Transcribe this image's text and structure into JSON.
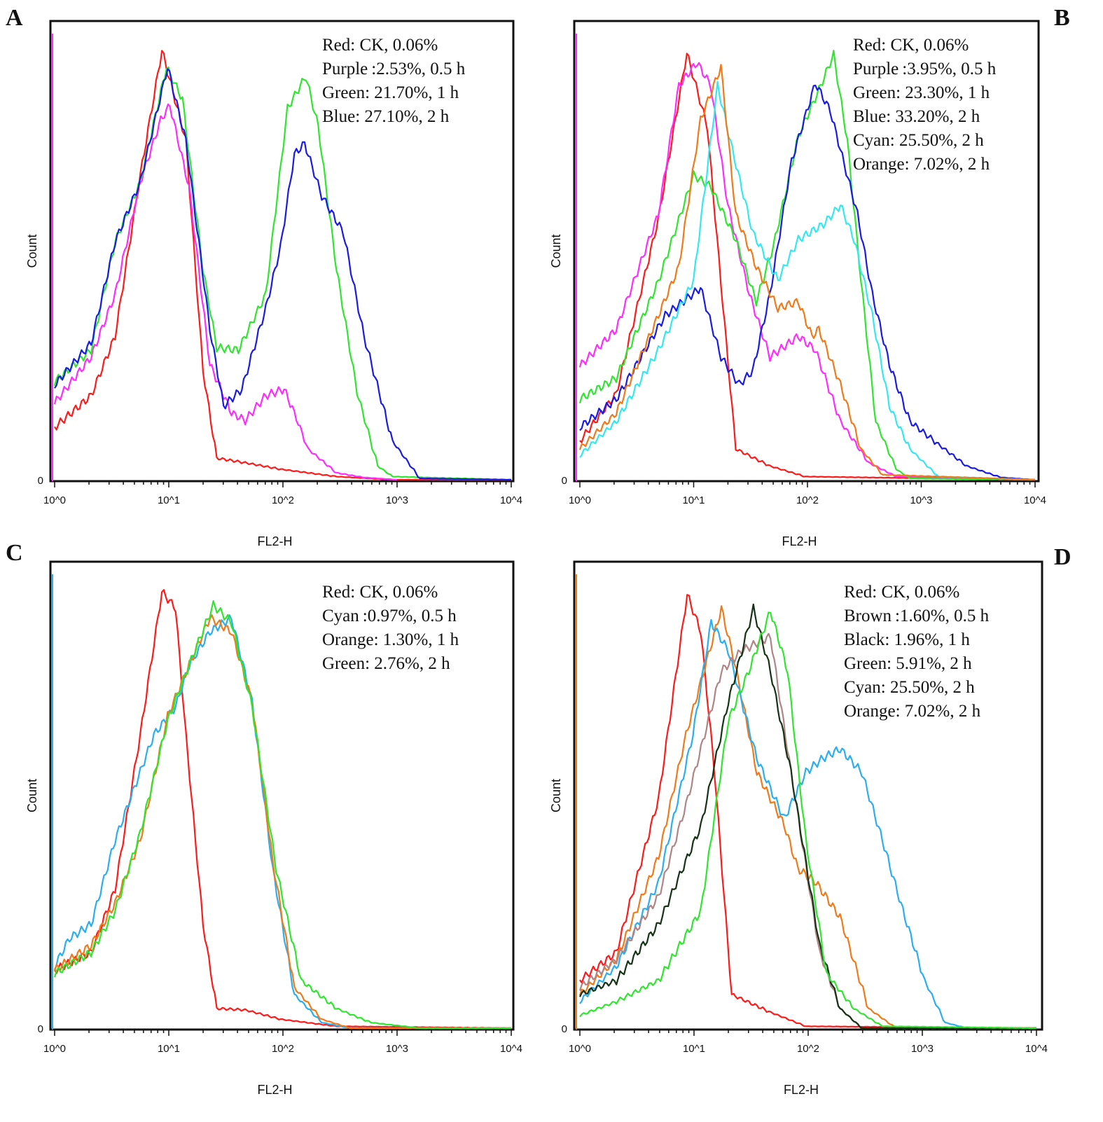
{
  "colors": {
    "red": "#ff1a1a",
    "purple": "#ff2bff",
    "green": "#2fe62f",
    "blue": "#1a1ae6",
    "cyan": "#33e8f0",
    "skyblue": "#2aaef0",
    "orange": "#f07a1a",
    "black": "#143214",
    "brown": "#b08484"
  },
  "chart_data": [
    {
      "type": "line",
      "panel": "A",
      "xlabel": "FL2-H",
      "ylabel": "Count",
      "xscale": "log",
      "xlim": [
        1,
        10000
      ],
      "ylim": [
        0,
        100
      ],
      "ytick_labels": [
        "0"
      ],
      "xtick_labels": [
        "10^0",
        "10^1",
        "10^2",
        "10^3",
        "10^4"
      ],
      "legend": [
        "Red: CK, 0.06%",
        "Purple :2.53%, 0.5 h",
        "Green: 21.70%, 1 h",
        "Blue: 27.10%, 2 h"
      ],
      "legend_placement": "top-right",
      "series": [
        {
          "name": "Red",
          "color": "red",
          "log_x": [
            0,
            0.32,
            0.53,
            0.75,
            0.94,
            1.15,
            1.3,
            1.42,
            1.67,
            1.98,
            2.47,
            2.96,
            4
          ],
          "y": [
            11.7,
            18.6,
            31.5,
            66.5,
            93.6,
            74,
            24,
            5,
            4,
            2.6,
            1,
            0.3,
            0.3
          ]
        },
        {
          "name": "Purple",
          "color": "purple",
          "log_x": [
            0,
            0.32,
            0.53,
            0.75,
            0.93,
            1.01,
            1.18,
            1.36,
            1.55,
            1.67,
            1.85,
            2.01,
            2.1,
            2.22,
            2.47,
            2.71,
            3
          ],
          "y": [
            17,
            27,
            40.6,
            65,
            78.5,
            81.7,
            63.5,
            25.4,
            14.8,
            13.2,
            18.6,
            20,
            14.8,
            7,
            1.8,
            0.8,
            0.3
          ]
        },
        {
          "name": "Green",
          "color": "green",
          "log_x": [
            0,
            0.32,
            0.53,
            0.75,
            0.98,
            1.12,
            1.3,
            1.42,
            1.61,
            1.85,
            2.04,
            2.2,
            2.31,
            2.47,
            2.65,
            2.83,
            2.96,
            4
          ],
          "y": [
            21.6,
            28.5,
            52,
            65,
            90,
            83,
            46,
            29,
            28.5,
            40.6,
            81,
            88,
            77,
            46,
            19.3,
            3.3,
            1,
            0.3
          ]
        },
        {
          "name": "Blue",
          "color": "blue",
          "log_x": [
            0,
            0.32,
            0.53,
            0.75,
            0.99,
            1.15,
            1.36,
            1.48,
            1.64,
            1.85,
            1.98,
            2.1,
            2.19,
            2.34,
            2.53,
            2.71,
            2.96,
            3.2,
            4
          ],
          "y": [
            20.9,
            30,
            52,
            65,
            90,
            74,
            33,
            16.3,
            20,
            37.6,
            51,
            71,
            73.4,
            62,
            54,
            31.5,
            8.7,
            0.6,
            0.3
          ]
        }
      ]
    },
    {
      "type": "line",
      "panel": "B",
      "xlabel": "FL2-H",
      "ylabel": "Count",
      "xscale": "log",
      "xlim": [
        1,
        10000
      ],
      "ylim": [
        0,
        100
      ],
      "ytick_labels": [
        "0"
      ],
      "xtick_labels": [
        "10^0",
        "10^1",
        "10^2",
        "10^3",
        "10^4"
      ],
      "legend": [
        "Red: CK, 0.06%",
        "Purple :3.95%, 0.5 h",
        "Green: 23.30%, 1 h",
        "Blue: 33.20%, 2 h",
        "Cyan: 25.50%, 2 h",
        "Orange: 7.02%, 2 h"
      ],
      "legend_placement": "top-right",
      "series": [
        {
          "name": "Red",
          "color": "red",
          "log_x": [
            0,
            0.32,
            0.69,
            0.94,
            1.12,
            1.24,
            1.37,
            1.67,
            1.98,
            4
          ],
          "y": [
            8.7,
            19,
            57,
            93,
            77,
            43,
            7,
            3.3,
            1,
            0.3
          ]
        },
        {
          "name": "Purple",
          "color": "purple",
          "log_x": [
            0,
            0.32,
            0.69,
            0.87,
            1.03,
            1.15,
            1.3,
            1.49,
            1.67,
            1.92,
            2.07,
            2.29,
            2.54,
            2.78,
            4
          ],
          "y": [
            25,
            33,
            58,
            86,
            91,
            86,
            60,
            40.6,
            27,
            31.5,
            28.5,
            13,
            4,
            1,
            0.3
          ]
        },
        {
          "name": "Green",
          "color": "green",
          "log_x": [
            0,
            0.32,
            0.69,
            1.0,
            1.15,
            1.37,
            1.55,
            1.7,
            1.92,
            2.1,
            2.23,
            2.35,
            2.47,
            2.6,
            2.78,
            2.9,
            4
          ],
          "y": [
            17.8,
            22.4,
            43.4,
            66.5,
            64,
            52.5,
            39,
            51,
            75,
            85,
            92.7,
            74,
            43.7,
            13,
            2.6,
            0.6,
            0.3
          ]
        },
        {
          "name": "Blue",
          "color": "blue",
          "log_x": [
            0,
            0.32,
            0.75,
            1.06,
            1.24,
            1.4,
            1.52,
            1.67,
            1.86,
            2.07,
            2.2,
            2.29,
            2.44,
            2.57,
            2.72,
            2.9,
            3.15,
            3.4,
            3.7,
            4
          ],
          "y": [
            11.7,
            17.8,
            36,
            42,
            27,
            21,
            24,
            40.6,
            69.5,
            86.5,
            80.5,
            72,
            58,
            40.6,
            25.4,
            13,
            8,
            3.3,
            0.8,
            0.3
          ]
        },
        {
          "name": "Cyan",
          "color": "cyan",
          "log_x": [
            0,
            0.32,
            0.69,
            1.0,
            1.15,
            1.21,
            1.34,
            1.52,
            1.74,
            1.92,
            2.14,
            2.29,
            2.41,
            2.57,
            2.72,
            2.9,
            3.15,
            4
          ],
          "y": [
            5.6,
            13,
            28.5,
            43.7,
            74,
            86,
            72,
            54,
            43.7,
            52.5,
            55.8,
            60,
            52.5,
            36,
            16.3,
            7,
            1,
            0.3
          ]
        },
        {
          "name": "Orange",
          "color": "orange",
          "log_x": [
            0,
            0.32,
            0.69,
            0.87,
            1.06,
            1.24,
            1.37,
            1.55,
            1.74,
            1.92,
            2.04,
            2.1,
            2.29,
            2.47,
            2.66,
            4
          ],
          "y": [
            7,
            14.8,
            36,
            46.6,
            78.5,
            90,
            58,
            46.6,
            37.6,
            39,
            31.5,
            33,
            21,
            7,
            1.4,
            0.3
          ]
        }
      ]
    },
    {
      "type": "line",
      "panel": "C",
      "xlabel": "FL2-H",
      "ylabel": "Count",
      "xscale": "log",
      "xlim": [
        1,
        10000
      ],
      "ylim": [
        0,
        100
      ],
      "ytick_labels": [
        "0"
      ],
      "xtick_labels": [
        "10^0",
        "10^1",
        "10^2",
        "10^3",
        "10^4"
      ],
      "legend": [
        "Red: CK, 0.06%",
        "Cyan :0.97%, 0.5 h",
        "Orange: 1.30%, 1 h",
        "Green: 2.76%, 2 h"
      ],
      "legend_placement": "top-right",
      "series": [
        {
          "name": "Red",
          "color": "red",
          "log_x": [
            0,
            0.32,
            0.53,
            0.75,
            0.94,
            1.06,
            1.15,
            1.3,
            1.42,
            1.67,
            1.98,
            2.47,
            4
          ],
          "y": [
            12.7,
            16.5,
            30,
            63,
            93.6,
            90,
            63,
            22.5,
            4.5,
            4.2,
            2.2,
            0.7,
            0.3
          ]
        },
        {
          "name": "Cyan",
          "color": "skyblue",
          "log_x": [
            0,
            0.13,
            0.32,
            0.53,
            0.87,
            1.06,
            1.18,
            1.36,
            1.55,
            1.73,
            1.91,
            2.1,
            2.34,
            2.59,
            4
          ],
          "y": [
            13.5,
            19.5,
            22.5,
            40.5,
            63,
            69,
            78,
            85,
            88,
            70,
            34.4,
            7.5,
            1.5,
            0.3,
            0.3
          ]
        },
        {
          "name": "Orange",
          "color": "orange",
          "log_x": [
            0,
            0.32,
            0.53,
            0.75,
            0.99,
            1.18,
            1.36,
            1.55,
            1.73,
            1.91,
            2.1,
            2.34,
            2.59,
            4
          ],
          "y": [
            12.7,
            18,
            27,
            40.5,
            67,
            78,
            88,
            85,
            70,
            36,
            9,
            2.2,
            0.3,
            0.3
          ]
        },
        {
          "name": "Green",
          "color": "green",
          "log_x": [
            0,
            0.32,
            0.53,
            0.75,
            0.99,
            1.18,
            1.39,
            1.55,
            1.73,
            1.94,
            2.16,
            2.47,
            2.77,
            3.2,
            4
          ],
          "y": [
            12,
            16.5,
            25.4,
            42,
            66,
            78,
            90.7,
            87,
            69,
            34.4,
            10.5,
            4.5,
            1.5,
            0.3,
            0.3
          ]
        }
      ]
    },
    {
      "type": "line",
      "panel": "D",
      "xlabel": "FL2-H",
      "ylabel": "Count",
      "xscale": "log",
      "xlim": [
        1,
        10000
      ],
      "ylim": [
        0,
        100
      ],
      "ytick_labels": [
        "0"
      ],
      "xtick_labels": [
        "10^0",
        "10^1",
        "10^2",
        "10^3",
        "10^4"
      ],
      "legend": [
        "Red: CK, 0.06%",
        "Brown :1.60%, 0.5 h",
        "Black: 1.96%, 1 h",
        "Green: 5.91%, 2 h",
        "Cyan: 25.50%, 2 h",
        "Orange: 7.02%, 2 h"
      ],
      "legend_placement": "top-right",
      "series": [
        {
          "name": "Red",
          "color": "red",
          "log_x": [
            0,
            0.32,
            0.69,
            0.94,
            1.06,
            1.18,
            1.33,
            1.67,
            1.98,
            4
          ],
          "y": [
            10.5,
            16.5,
            49.4,
            93,
            85,
            55,
            7.5,
            3.7,
            0.7,
            0.3
          ]
        },
        {
          "name": "Orange",
          "color": "orange",
          "log_x": [
            0,
            0.32,
            0.69,
            0.93,
            1.24,
            1.36,
            1.55,
            1.79,
            1.91,
            2.07,
            2.28,
            2.53,
            2.77,
            4
          ],
          "y": [
            7.5,
            15,
            37,
            63,
            90,
            78,
            55,
            43.7,
            34.4,
            31.4,
            24,
            4.5,
            0.3,
            0.3
          ]
        },
        {
          "name": "Cyan",
          "color": "skyblue",
          "log_x": [
            0,
            0.32,
            0.69,
            0.99,
            1.15,
            1.3,
            1.55,
            1.79,
            1.98,
            2.13,
            2.28,
            2.47,
            2.65,
            2.83,
            3.02,
            3.2,
            3.39,
            4
          ],
          "y": [
            6,
            13.5,
            31.4,
            63,
            87,
            81,
            58,
            45,
            55,
            58,
            60,
            55,
            40.5,
            25.4,
            10.5,
            1.5,
            0.3,
            0.3
          ]
        },
        {
          "name": "Brown",
          "color": "brown",
          "log_x": [
            0,
            0.32,
            0.69,
            0.93,
            1.24,
            1.42,
            1.67,
            1.85,
            2.1,
            2.28,
            2.47,
            4
          ],
          "y": [
            9,
            15,
            28.5,
            48,
            76.6,
            81,
            84,
            55,
            16.5,
            4.5,
            0.3,
            0.3
          ]
        },
        {
          "name": "Black",
          "color": "black",
          "log_x": [
            0,
            0.32,
            0.69,
            1.06,
            1.3,
            1.52,
            1.67,
            1.85,
            2.1,
            2.28,
            2.47,
            4
          ],
          "y": [
            7.5,
            10.5,
            22.5,
            43.4,
            70,
            90,
            76.6,
            55,
            18,
            4.5,
            0.3,
            0.3
          ]
        },
        {
          "name": "Green",
          "color": "green",
          "log_x": [
            0,
            0.32,
            0.69,
            1.06,
            1.3,
            1.48,
            1.67,
            1.82,
            1.98,
            2.16,
            2.4,
            2.65,
            4
          ],
          "y": [
            3,
            6,
            10.5,
            25.4,
            66,
            76.6,
            89.5,
            76.6,
            40.5,
            12,
            4.5,
            0.7,
            0.3
          ]
        }
      ]
    }
  ]
}
